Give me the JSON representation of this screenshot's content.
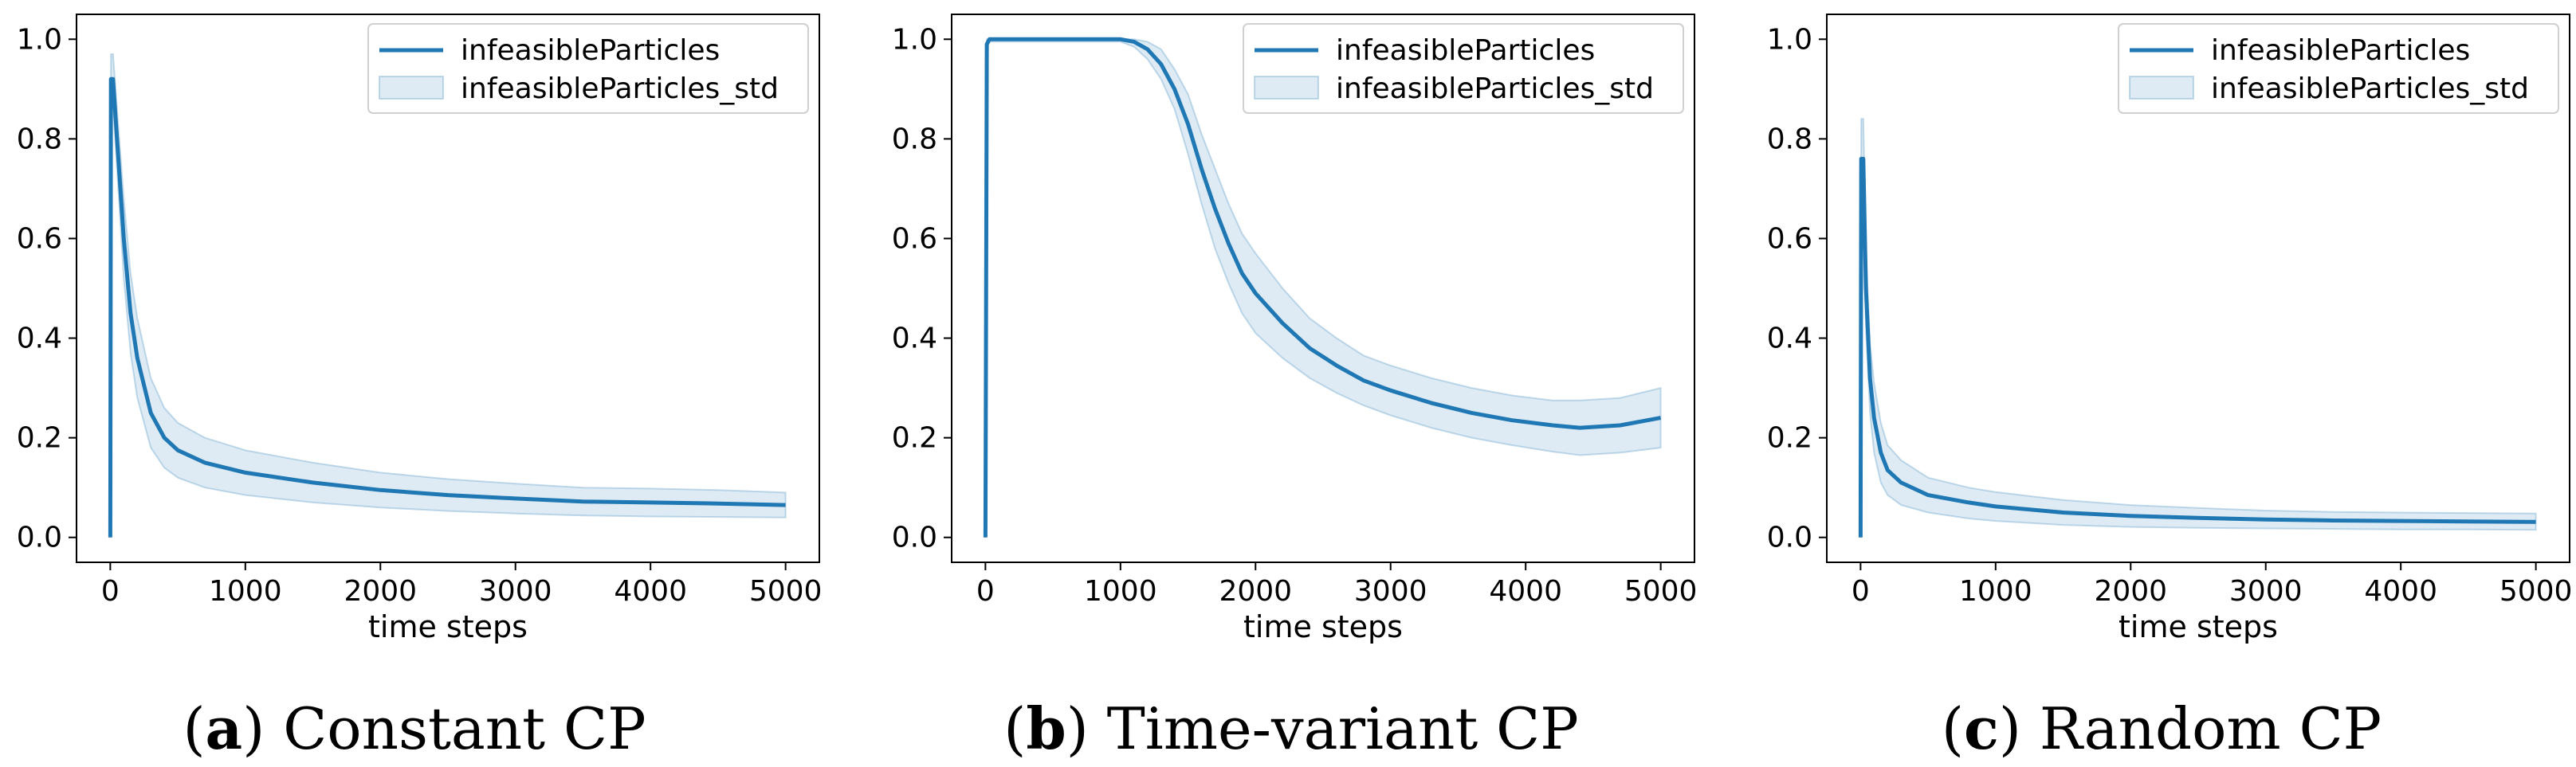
{
  "figure": {
    "line_color": "#1f77b4",
    "band_color": "#1f77b4",
    "band_opacity": 0.15
  },
  "chart_data": [
    {
      "type": "line",
      "caption_letter": "a",
      "caption_text": "Constant CP",
      "xlabel": "time steps",
      "ylabel": "",
      "xlim": [
        -250,
        5250
      ],
      "ylim": [
        -0.05,
        1.05
      ],
      "xticks": [
        0,
        1000,
        2000,
        3000,
        4000,
        5000
      ],
      "yticks": [
        0.0,
        0.2,
        0.4,
        0.6,
        0.8,
        1.0
      ],
      "xtick_labels": [
        "0",
        "1000",
        "2000",
        "3000",
        "4000",
        "5000"
      ],
      "ytick_labels": [
        "0.0",
        "0.2",
        "0.4",
        "0.6",
        "0.8",
        "1.0"
      ],
      "legend": {
        "placement": "top-right",
        "entries": [
          "infeasibleParticles",
          "infeasibleParticles_std"
        ]
      },
      "series": [
        {
          "name": "infeasibleParticles",
          "x": [
            0,
            5,
            20,
            50,
            100,
            150,
            200,
            300,
            400,
            500,
            700,
            1000,
            1500,
            2000,
            2500,
            3000,
            3500,
            4000,
            4500,
            5000
          ],
          "values": [
            0.0,
            0.92,
            0.92,
            0.8,
            0.6,
            0.45,
            0.36,
            0.25,
            0.2,
            0.175,
            0.15,
            0.13,
            0.11,
            0.095,
            0.085,
            0.078,
            0.072,
            0.07,
            0.068,
            0.065
          ]
        },
        {
          "name": "infeasibleParticles_std",
          "type": "band",
          "x": [
            0,
            5,
            20,
            50,
            100,
            150,
            200,
            300,
            400,
            500,
            700,
            1000,
            1500,
            2000,
            2500,
            3000,
            3500,
            4000,
            4500,
            5000
          ],
          "lower": [
            0.0,
            0.87,
            0.87,
            0.74,
            0.52,
            0.37,
            0.28,
            0.18,
            0.14,
            0.12,
            0.1,
            0.085,
            0.07,
            0.06,
            0.053,
            0.048,
            0.044,
            0.042,
            0.041,
            0.04
          ],
          "upper": [
            0.0,
            0.97,
            0.97,
            0.86,
            0.68,
            0.53,
            0.44,
            0.32,
            0.26,
            0.23,
            0.2,
            0.175,
            0.15,
            0.13,
            0.117,
            0.108,
            0.1,
            0.098,
            0.095,
            0.09
          ]
        }
      ]
    },
    {
      "type": "line",
      "caption_letter": "b",
      "caption_text": "Time-variant CP",
      "xlabel": "time steps",
      "ylabel": "",
      "xlim": [
        -250,
        5250
      ],
      "ylim": [
        -0.05,
        1.05
      ],
      "xticks": [
        0,
        1000,
        2000,
        3000,
        4000,
        5000
      ],
      "yticks": [
        0.0,
        0.2,
        0.4,
        0.6,
        0.8,
        1.0
      ],
      "xtick_labels": [
        "0",
        "1000",
        "2000",
        "3000",
        "4000",
        "5000"
      ],
      "ytick_labels": [
        "0.0",
        "0.2",
        "0.4",
        "0.6",
        "0.8",
        "1.0"
      ],
      "legend": {
        "placement": "top-right",
        "entries": [
          "infeasibleParticles",
          "infeasibleParticles_std"
        ]
      },
      "series": [
        {
          "name": "infeasibleParticles",
          "x": [
            0,
            10,
            30,
            500,
            1000,
            1100,
            1200,
            1300,
            1400,
            1500,
            1600,
            1700,
            1800,
            1900,
            2000,
            2200,
            2400,
            2600,
            2800,
            3000,
            3300,
            3600,
            3900,
            4200,
            4400,
            4700,
            5000
          ],
          "values": [
            0.0,
            0.99,
            1.0,
            1.0,
            1.0,
            0.995,
            0.98,
            0.95,
            0.9,
            0.83,
            0.74,
            0.66,
            0.59,
            0.53,
            0.49,
            0.43,
            0.38,
            0.345,
            0.315,
            0.295,
            0.27,
            0.25,
            0.235,
            0.225,
            0.22,
            0.225,
            0.24
          ]
        },
        {
          "name": "infeasibleParticles_std",
          "type": "band",
          "x": [
            0,
            10,
            30,
            500,
            1000,
            1100,
            1200,
            1300,
            1400,
            1500,
            1600,
            1700,
            1800,
            1900,
            2000,
            2200,
            2400,
            2600,
            2800,
            3000,
            3300,
            3600,
            3900,
            4200,
            4400,
            4700,
            5000
          ],
          "lower": [
            0.0,
            0.98,
            0.995,
            0.995,
            0.995,
            0.985,
            0.96,
            0.92,
            0.86,
            0.77,
            0.67,
            0.58,
            0.51,
            0.45,
            0.41,
            0.36,
            0.32,
            0.29,
            0.265,
            0.245,
            0.22,
            0.2,
            0.185,
            0.172,
            0.165,
            0.17,
            0.18
          ],
          "upper": [
            0.0,
            1.0,
            1.0,
            1.0,
            1.0,
            1.0,
            0.995,
            0.98,
            0.94,
            0.89,
            0.81,
            0.74,
            0.67,
            0.61,
            0.57,
            0.5,
            0.44,
            0.4,
            0.365,
            0.345,
            0.32,
            0.3,
            0.285,
            0.275,
            0.275,
            0.28,
            0.3
          ]
        }
      ]
    },
    {
      "type": "line",
      "caption_letter": "c",
      "caption_text": "Random CP",
      "xlabel": "time steps",
      "ylabel": "",
      "xlim": [
        -250,
        5250
      ],
      "ylim": [
        -0.05,
        1.05
      ],
      "xticks": [
        0,
        1000,
        2000,
        3000,
        4000,
        5000
      ],
      "yticks": [
        0.0,
        0.2,
        0.4,
        0.6,
        0.8,
        1.0
      ],
      "xtick_labels": [
        "0",
        "1000",
        "2000",
        "3000",
        "4000",
        "5000"
      ],
      "ytick_labels": [
        "0.0",
        "0.2",
        "0.4",
        "0.6",
        "0.8",
        "1.0"
      ],
      "legend": {
        "placement": "top-right",
        "entries": [
          "infeasibleParticles",
          "infeasibleParticles_std"
        ]
      },
      "series": [
        {
          "name": "infeasibleParticles",
          "x": [
            0,
            5,
            20,
            40,
            70,
            100,
            150,
            200,
            300,
            500,
            800,
            1000,
            1500,
            2000,
            2500,
            3000,
            3500,
            4000,
            4500,
            5000
          ],
          "values": [
            0.0,
            0.76,
            0.76,
            0.5,
            0.32,
            0.24,
            0.17,
            0.135,
            0.11,
            0.085,
            0.07,
            0.062,
            0.05,
            0.043,
            0.039,
            0.036,
            0.034,
            0.033,
            0.032,
            0.031
          ]
        },
        {
          "name": "infeasibleParticles_std",
          "type": "band",
          "x": [
            0,
            5,
            20,
            40,
            70,
            100,
            150,
            200,
            300,
            500,
            800,
            1000,
            1500,
            2000,
            2500,
            3000,
            3500,
            4000,
            4500,
            5000
          ],
          "lower": [
            0.0,
            0.68,
            0.68,
            0.42,
            0.25,
            0.17,
            0.11,
            0.085,
            0.065,
            0.05,
            0.038,
            0.033,
            0.025,
            0.021,
            0.019,
            0.018,
            0.017,
            0.016,
            0.016,
            0.015
          ],
          "upper": [
            0.0,
            0.84,
            0.84,
            0.58,
            0.39,
            0.31,
            0.23,
            0.185,
            0.155,
            0.12,
            0.1,
            0.091,
            0.075,
            0.065,
            0.059,
            0.054,
            0.051,
            0.05,
            0.049,
            0.048
          ]
        }
      ]
    }
  ]
}
